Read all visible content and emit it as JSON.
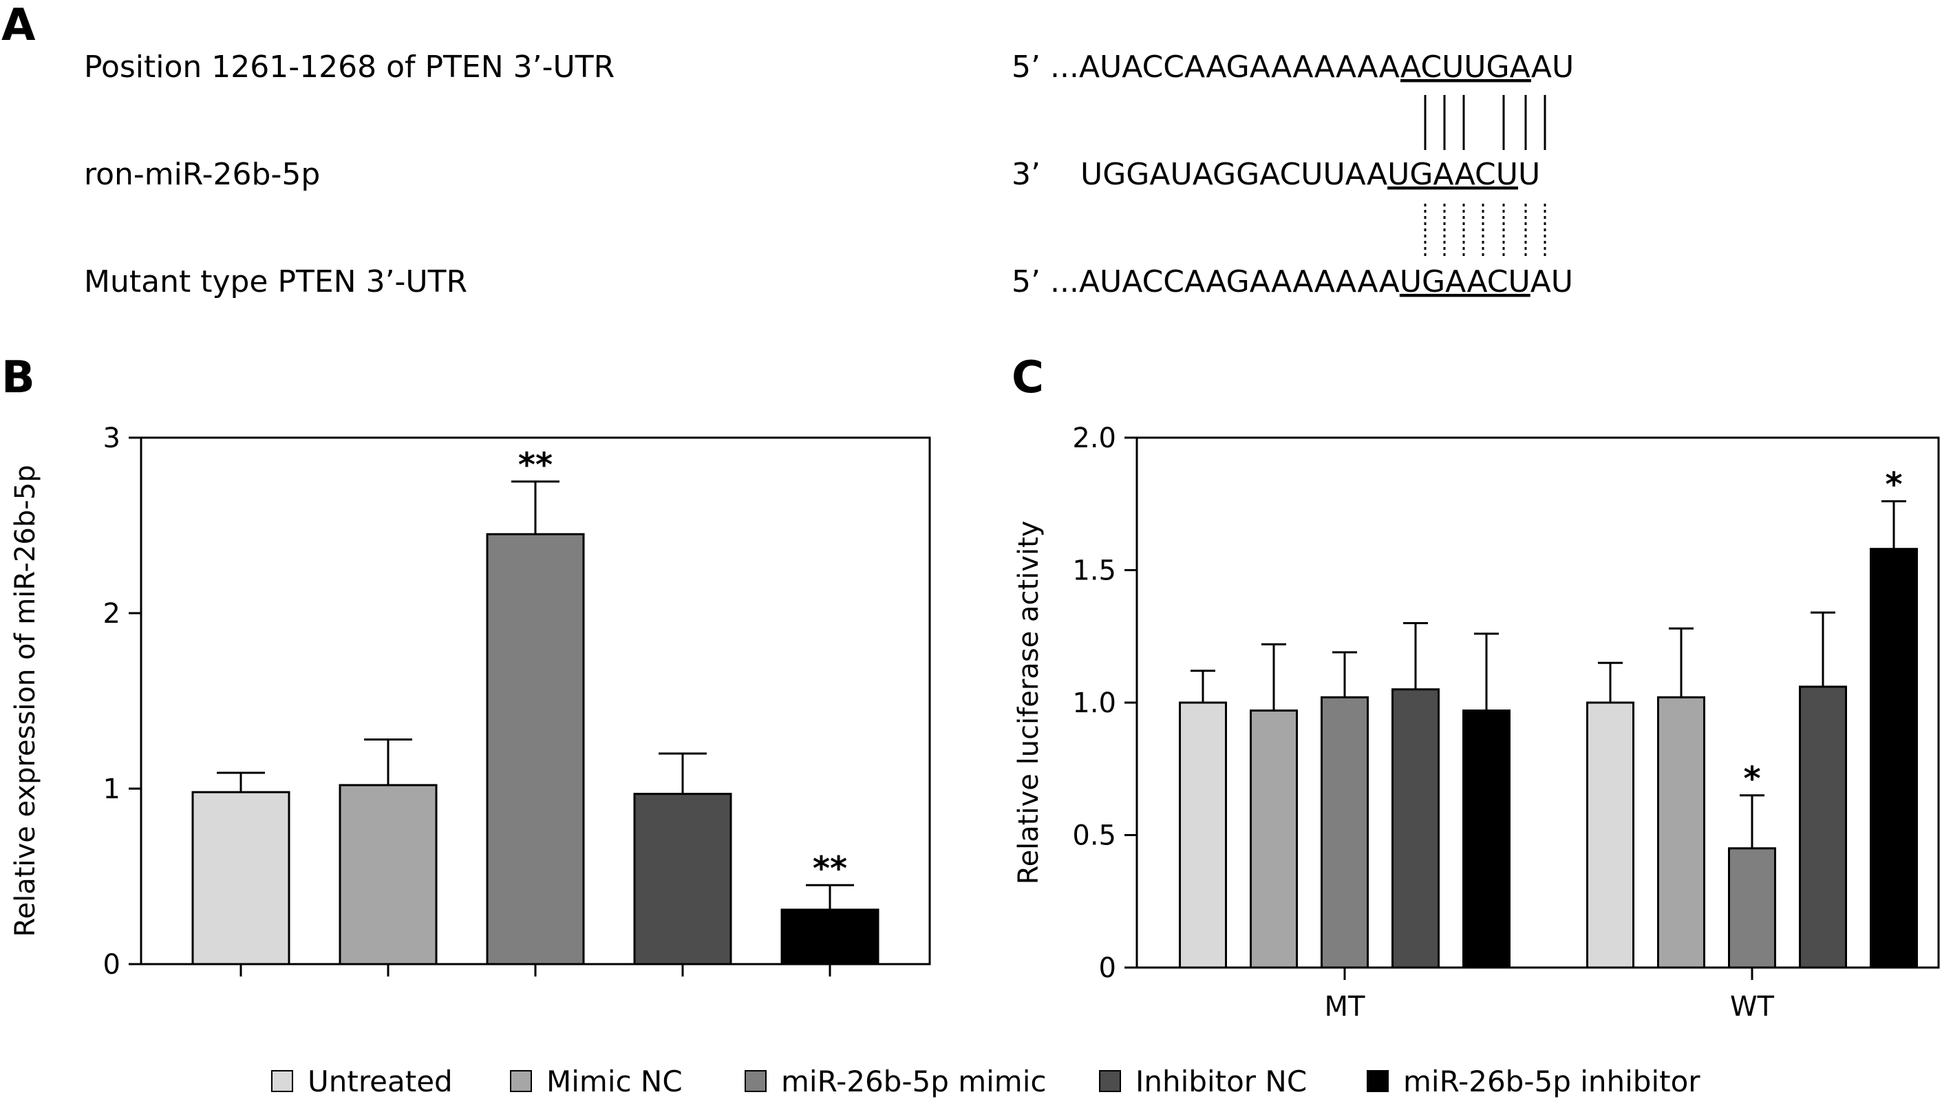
{
  "panels": {
    "a": "A",
    "b": "B",
    "c": "C"
  },
  "panel_a": {
    "rows": [
      {
        "label": "Position 1261-1268 of PTEN 3’-UTR",
        "prefix": "5’ ...",
        "pre": "AUACCAAGAAAAAAA",
        "under": "ACUUGA",
        "post": "AU"
      },
      {
        "label": "ron-miR-26b-5p",
        "prefix": "3’",
        "pre": "UGGAUAGGACUUAA",
        "under": "UGAACU",
        "post": "U"
      },
      {
        "label": "Mutant type PTEN 3’-UTR",
        "prefix": "5’ ...",
        "pre": "AUACCAAGAAAAAAA",
        "under": "UGAACU",
        "post": "AU"
      }
    ]
  },
  "colors": {
    "Untreated": "#d9d9d9",
    "Mimic NC": "#a6a6a6",
    "miR-26b-5p mimic": "#7f7f7f",
    "Inhibitor NC": "#4d4d4d",
    "miR-26b-5p inhibitor": "#000000"
  },
  "legend": [
    "Untreated",
    "Mimic NC",
    "miR-26b-5p mimic",
    "Inhibitor NC",
    "miR-26b-5p inhibitor"
  ],
  "chart_data": [
    {
      "type": "bar",
      "panel": "B",
      "ylabel": "Relative expression of miR-26b-5p",
      "ylim": [
        0,
        3
      ],
      "yticks": [
        "0",
        "1",
        "2",
        "3"
      ],
      "categories": [
        "Untreated",
        "Mimic NC",
        "miR-26b-5p mimic",
        "Inhibitor NC",
        "miR-26b-5p inhibitor"
      ],
      "values": [
        0.98,
        1.02,
        2.45,
        0.97,
        0.31
      ],
      "errors": [
        0.11,
        0.26,
        0.3,
        0.23,
        0.14
      ],
      "significance": [
        "",
        "",
        "**",
        "",
        "**"
      ]
    },
    {
      "type": "bar",
      "panel": "C",
      "ylabel": "Relative luciferase activity",
      "ylim": [
        0,
        2.0
      ],
      "yticks": [
        "0",
        "0.5",
        "1.0",
        "1.5",
        "2.0"
      ],
      "groups": [
        "MT",
        "WT"
      ],
      "series": [
        {
          "name": "Untreated",
          "values": [
            1.0,
            1.0
          ],
          "errors": [
            0.12,
            0.15
          ],
          "significance": [
            "",
            ""
          ]
        },
        {
          "name": "Mimic NC",
          "values": [
            0.97,
            1.02
          ],
          "errors": [
            0.25,
            0.26
          ],
          "significance": [
            "",
            ""
          ]
        },
        {
          "name": "miR-26b-5p mimic",
          "values": [
            1.02,
            0.45
          ],
          "errors": [
            0.17,
            0.2
          ],
          "significance": [
            "",
            "*"
          ]
        },
        {
          "name": "Inhibitor NC",
          "values": [
            1.05,
            1.06
          ],
          "errors": [
            0.25,
            0.28
          ],
          "significance": [
            "",
            ""
          ]
        },
        {
          "name": "miR-26b-5p inhibitor",
          "values": [
            0.97,
            1.58
          ],
          "errors": [
            0.29,
            0.18
          ],
          "significance": [
            "",
            "*"
          ]
        }
      ]
    }
  ]
}
